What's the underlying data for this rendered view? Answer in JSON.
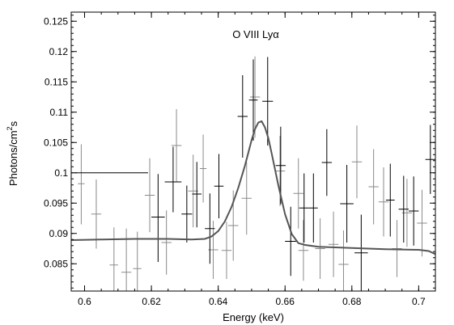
{
  "chart_data": {
    "type": "scatter",
    "title": "",
    "annotation": "O VIII Lyα",
    "xlabel": "Energy (keV)",
    "ylabel_main": "Photons/cm",
    "ylabel_sup": "2",
    "ylabel_tail": "s",
    "xlim": [
      0.596,
      0.705
    ],
    "ylim": [
      0.0805,
      0.1265
    ],
    "x_ticks": [
      0.6,
      0.62,
      0.64,
      0.66,
      0.68,
      0.7
    ],
    "x_tick_labels": [
      "0.6",
      "0.62",
      "0.64",
      "0.66",
      "0.68",
      "0.7"
    ],
    "y_ticks": [
      0.085,
      0.09,
      0.095,
      0.1,
      0.105,
      0.11,
      0.115,
      0.12,
      0.125
    ],
    "y_tick_labels": [
      "0.085",
      "0.09",
      "0.095",
      "0.1",
      "0.105",
      "0.11",
      "0.115",
      "0.12",
      "0.125"
    ],
    "grid": false,
    "colors": {
      "dark_points": "#000000",
      "light_points": "#8a8a8a",
      "model": "#555555"
    },
    "series": [
      {
        "style": "dark",
        "points": [
          {
            "x": 0.597,
            "xlo": 0.597,
            "xhi": 0.619,
            "y": 0.1,
            "ylo": 0.1,
            "yhi": 0.1
          },
          {
            "x": 0.622,
            "xlo": 0.62,
            "xhi": 0.624,
            "y": 0.0927,
            "ylo": 0.0853,
            "yhi": 0.0998
          },
          {
            "x": 0.6265,
            "xlo": 0.624,
            "xhi": 0.629,
            "y": 0.0985,
            "ylo": 0.0935,
            "yhi": 0.1043
          },
          {
            "x": 0.6306,
            "xlo": 0.629,
            "xhi": 0.6322,
            "y": 0.0932,
            "ylo": 0.0885,
            "yhi": 0.0979
          },
          {
            "x": 0.6336,
            "xlo": 0.6322,
            "xhi": 0.635,
            "y": 0.0965,
            "ylo": 0.091,
            "yhi": 0.1018
          },
          {
            "x": 0.6375,
            "xlo": 0.636,
            "xhi": 0.639,
            "y": 0.0908,
            "ylo": 0.085,
            "yhi": 0.0966
          },
          {
            "x": 0.6402,
            "xlo": 0.6388,
            "xhi": 0.6416,
            "y": 0.0978,
            "ylo": 0.0925,
            "yhi": 0.1031
          },
          {
            "x": 0.6473,
            "xlo": 0.6458,
            "xhi": 0.6488,
            "y": 0.1093,
            "ylo": 0.1025,
            "yhi": 0.1161
          },
          {
            "x": 0.6505,
            "xlo": 0.6492,
            "xhi": 0.6518,
            "y": 0.112,
            "ylo": 0.1053,
            "yhi": 0.1187
          },
          {
            "x": 0.6548,
            "xlo": 0.6532,
            "xhi": 0.6564,
            "y": 0.1118,
            "ylo": 0.1045,
            "yhi": 0.1191
          },
          {
            "x": 0.6587,
            "xlo": 0.6572,
            "xhi": 0.6602,
            "y": 0.1012,
            "ylo": 0.0948,
            "yhi": 0.1076
          },
          {
            "x": 0.6617,
            "xlo": 0.66,
            "xhi": 0.6634,
            "y": 0.0887,
            "ylo": 0.083,
            "yhi": 0.0944
          },
          {
            "x": 0.6657,
            "xlo": 0.6642,
            "xhi": 0.6672,
            "y": 0.0942,
            "ylo": 0.0885,
            "yhi": 0.0999
          },
          {
            "x": 0.6685,
            "xlo": 0.6672,
            "xhi": 0.6698,
            "y": 0.0942,
            "ylo": 0.0885,
            "yhi": 0.0999
          },
          {
            "x": 0.6725,
            "xlo": 0.671,
            "xhi": 0.674,
            "y": 0.1017,
            "ylo": 0.0962,
            "yhi": 0.1072
          },
          {
            "x": 0.6785,
            "xlo": 0.6765,
            "xhi": 0.6805,
            "y": 0.0949,
            "ylo": 0.0885,
            "yhi": 0.1013
          },
          {
            "x": 0.6828,
            "xlo": 0.6808,
            "xhi": 0.6848,
            "y": 0.0868,
            "ylo": 0.0805,
            "yhi": 0.0931
          },
          {
            "x": 0.6915,
            "xlo": 0.6902,
            "xhi": 0.6928,
            "y": 0.0955,
            "ylo": 0.0895,
            "yhi": 0.1015
          },
          {
            "x": 0.6955,
            "xlo": 0.694,
            "xhi": 0.697,
            "y": 0.094,
            "ylo": 0.0885,
            "yhi": 0.0995
          },
          {
            "x": 0.6985,
            "xlo": 0.697,
            "xhi": 0.7,
            "y": 0.0937,
            "ylo": 0.088,
            "yhi": 0.0994
          },
          {
            "x": 0.7035,
            "xlo": 0.702,
            "xhi": 0.705,
            "y": 0.1022,
            "ylo": 0.0965,
            "yhi": 0.1079
          }
        ]
      },
      {
        "style": "light",
        "points": [
          {
            "x": 0.599,
            "xlo": 0.598,
            "xhi": 0.6,
            "y": 0.0982,
            "ylo": 0.0915,
            "yhi": 0.1047
          },
          {
            "x": 0.6035,
            "xlo": 0.602,
            "xhi": 0.605,
            "y": 0.0932,
            "ylo": 0.0875,
            "yhi": 0.0989
          },
          {
            "x": 0.6088,
            "xlo": 0.6075,
            "xhi": 0.61,
            "y": 0.0848,
            "ylo": 0.08,
            "yhi": 0.091
          },
          {
            "x": 0.6125,
            "xlo": 0.611,
            "xhi": 0.614,
            "y": 0.0836,
            "ylo": 0.08,
            "yhi": 0.0908
          },
          {
            "x": 0.6158,
            "xlo": 0.6145,
            "xhi": 0.617,
            "y": 0.0842,
            "ylo": 0.08,
            "yhi": 0.0903
          },
          {
            "x": 0.6195,
            "xlo": 0.618,
            "xhi": 0.621,
            "y": 0.0963,
            "ylo": 0.0902,
            "yhi": 0.1024
          },
          {
            "x": 0.6245,
            "xlo": 0.623,
            "xhi": 0.626,
            "y": 0.0885,
            "ylo": 0.0832,
            "yhi": 0.0938
          },
          {
            "x": 0.6275,
            "xlo": 0.626,
            "xhi": 0.629,
            "y": 0.1045,
            "ylo": 0.0985,
            "yhi": 0.1105
          },
          {
            "x": 0.6325,
            "xlo": 0.631,
            "xhi": 0.634,
            "y": 0.097,
            "ylo": 0.091,
            "yhi": 0.103
          },
          {
            "x": 0.6355,
            "xlo": 0.6345,
            "xhi": 0.6365,
            "y": 0.1007,
            "ylo": 0.0951,
            "yhi": 0.1063
          },
          {
            "x": 0.6385,
            "xlo": 0.637,
            "xhi": 0.64,
            "y": 0.0873,
            "ylo": 0.0825,
            "yhi": 0.0921
          },
          {
            "x": 0.6425,
            "xlo": 0.641,
            "xhi": 0.644,
            "y": 0.0872,
            "ylo": 0.0825,
            "yhi": 0.0919
          },
          {
            "x": 0.6445,
            "xlo": 0.643,
            "xhi": 0.646,
            "y": 0.0913,
            "ylo": 0.0855,
            "yhi": 0.0971
          },
          {
            "x": 0.6485,
            "xlo": 0.647,
            "xhi": 0.65,
            "y": 0.0958,
            "ylo": 0.0898,
            "yhi": 0.1018
          },
          {
            "x": 0.651,
            "xlo": 0.6495,
            "xhi": 0.6525,
            "y": 0.1125,
            "ylo": 0.1058,
            "yhi": 0.1192
          },
          {
            "x": 0.6585,
            "xlo": 0.657,
            "xhi": 0.66,
            "y": 0.1003,
            "ylo": 0.0945,
            "yhi": 0.1061
          },
          {
            "x": 0.664,
            "xlo": 0.6625,
            "xhi": 0.6655,
            "y": 0.0966,
            "ylo": 0.0908,
            "yhi": 0.1024
          },
          {
            "x": 0.6655,
            "xlo": 0.664,
            "xhi": 0.667,
            "y": 0.0872,
            "ylo": 0.0822,
            "yhi": 0.0922
          },
          {
            "x": 0.6705,
            "xlo": 0.669,
            "xhi": 0.672,
            "y": 0.0875,
            "ylo": 0.0825,
            "yhi": 0.0925
          },
          {
            "x": 0.6745,
            "xlo": 0.673,
            "xhi": 0.676,
            "y": 0.0882,
            "ylo": 0.0828,
            "yhi": 0.0936
          },
          {
            "x": 0.6775,
            "xlo": 0.676,
            "xhi": 0.679,
            "y": 0.0849,
            "ylo": 0.08,
            "yhi": 0.0905
          },
          {
            "x": 0.6815,
            "xlo": 0.68,
            "xhi": 0.683,
            "y": 0.1018,
            "ylo": 0.0958,
            "yhi": 0.1078
          },
          {
            "x": 0.6865,
            "xlo": 0.685,
            "xhi": 0.688,
            "y": 0.0977,
            "ylo": 0.0915,
            "yhi": 0.1039
          },
          {
            "x": 0.6895,
            "xlo": 0.688,
            "xhi": 0.691,
            "y": 0.0952,
            "ylo": 0.0895,
            "yhi": 0.1009
          },
          {
            "x": 0.6935,
            "xlo": 0.692,
            "xhi": 0.695,
            "y": 0.0875,
            "ylo": 0.0828,
            "yhi": 0.0922
          },
          {
            "x": 0.6965,
            "xlo": 0.695,
            "xhi": 0.698,
            "y": 0.0934,
            "ylo": 0.0878,
            "yhi": 0.099
          },
          {
            "x": 0.701,
            "xlo": 0.6995,
            "xhi": 0.7025,
            "y": 0.0917,
            "ylo": 0.0862,
            "yhi": 0.0972
          }
        ]
      }
    ],
    "model": {
      "style": "line",
      "x": [
        0.596,
        0.605,
        0.615,
        0.625,
        0.632,
        0.636,
        0.638,
        0.64,
        0.642,
        0.644,
        0.646,
        0.648,
        0.65,
        0.651,
        0.652,
        0.653,
        0.654,
        0.655,
        0.656,
        0.657,
        0.658,
        0.66,
        0.662,
        0.664,
        0.666,
        0.67,
        0.68,
        0.69,
        0.7,
        0.703,
        0.705
      ],
      "y": [
        0.0889,
        0.089,
        0.0891,
        0.0891,
        0.089,
        0.0891,
        0.0895,
        0.0904,
        0.092,
        0.0944,
        0.0975,
        0.1012,
        0.1054,
        0.1072,
        0.1083,
        0.1085,
        0.1075,
        0.1057,
        0.1032,
        0.1006,
        0.0979,
        0.0932,
        0.0899,
        0.0884,
        0.0881,
        0.0878,
        0.0876,
        0.0874,
        0.0873,
        0.0871,
        0.0866
      ]
    }
  }
}
